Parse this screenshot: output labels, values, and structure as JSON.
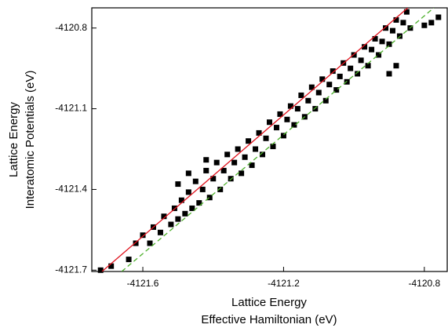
{
  "chart_data": {
    "type": "scatter",
    "x_label": [
      "Lattice Energy",
      "Effective Hamiltonian (eV)"
    ],
    "y_label": [
      "Lattice Energy",
      "Interatomic Potentials (eV)"
    ],
    "xlim": [
      -4121.745,
      -4120.735
    ],
    "ylim": [
      -4121.705,
      -4120.725
    ],
    "xticks": [
      -4121.6,
      -4121.2,
      -4120.8
    ],
    "yticks": [
      -4120.8,
      -4121.1,
      -4121.4,
      -4121.7
    ],
    "color": "#000000",
    "x": [
      -4121.72,
      -4121.69,
      -4121.64,
      -4121.62,
      -4121.6,
      -4121.58,
      -4121.57,
      -4121.55,
      -4121.54,
      -4121.52,
      -4121.51,
      -4121.5,
      -4121.49,
      -4121.48,
      -4121.47,
      -4121.46,
      -4121.45,
      -4121.44,
      -4121.43,
      -4121.42,
      -4121.41,
      -4121.4,
      -4121.39,
      -4121.38,
      -4121.37,
      -4121.36,
      -4121.35,
      -4121.34,
      -4121.33,
      -4121.32,
      -4121.31,
      -4121.3,
      -4121.29,
      -4121.28,
      -4121.27,
      -4121.26,
      -4121.25,
      -4121.24,
      -4121.23,
      -4121.22,
      -4121.21,
      -4121.2,
      -4121.19,
      -4121.18,
      -4121.17,
      -4121.16,
      -4121.15,
      -4121.14,
      -4121.13,
      -4121.12,
      -4121.11,
      -4121.1,
      -4121.09,
      -4121.08,
      -4121.07,
      -4121.06,
      -4121.05,
      -4121.04,
      -4121.03,
      -4121.02,
      -4121.01,
      -4121.0,
      -4120.99,
      -4120.98,
      -4120.97,
      -4120.96,
      -4120.95,
      -4120.94,
      -4120.93,
      -4120.92,
      -4120.91,
      -4120.9,
      -4120.89,
      -4120.88,
      -4120.87,
      -4120.86,
      -4120.85,
      -4120.84,
      -4120.8,
      -4120.78,
      -4120.76,
      -4120.9,
      -4120.88,
      -4121.47,
      -4121.5,
      -4121.42
    ],
    "values": [
      -4121.7,
      -4121.685,
      -4121.66,
      -4121.6,
      -4121.57,
      -4121.6,
      -4121.54,
      -4121.56,
      -4121.5,
      -4121.53,
      -4121.47,
      -4121.51,
      -4121.44,
      -4121.49,
      -4121.41,
      -4121.47,
      -4121.37,
      -4121.45,
      -4121.4,
      -4121.33,
      -4121.43,
      -4121.36,
      -4121.3,
      -4121.4,
      -4121.33,
      -4121.27,
      -4121.36,
      -4121.3,
      -4121.25,
      -4121.34,
      -4121.28,
      -4121.22,
      -4121.31,
      -4121.25,
      -4121.19,
      -4121.27,
      -4121.21,
      -4121.15,
      -4121.24,
      -4121.17,
      -4121.12,
      -4121.2,
      -4121.14,
      -4121.09,
      -4121.16,
      -4121.1,
      -4121.05,
      -4121.13,
      -4121.07,
      -4121.02,
      -4121.1,
      -4121.04,
      -4120.99,
      -4121.07,
      -4121.01,
      -4120.96,
      -4121.03,
      -4120.98,
      -4120.93,
      -4121.0,
      -4120.95,
      -4120.9,
      -4120.97,
      -4120.92,
      -4120.87,
      -4120.94,
      -4120.88,
      -4120.84,
      -4120.9,
      -4120.85,
      -4120.8,
      -4120.86,
      -4120.81,
      -4120.77,
      -4120.83,
      -4120.78,
      -4120.74,
      -4120.8,
      -4120.79,
      -4120.78,
      -4120.76,
      -4120.97,
      -4120.94,
      -4121.34,
      -4121.38,
      -4121.29
    ],
    "fit_lines": [
      {
        "color": "#e0141e",
        "dashed": false,
        "x": [
          -4121.716,
          -4120.847
        ],
        "values": [
          -4121.705,
          -4120.725
        ]
      },
      {
        "color": "#4caf2a",
        "dashed": true,
        "x": [
          -4121.66,
          -4120.773
        ],
        "values": [
          -4121.705,
          -4120.725
        ]
      }
    ]
  }
}
